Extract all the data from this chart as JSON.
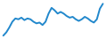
{
  "values": [
    1,
    5,
    11,
    18,
    22,
    21,
    23,
    20,
    22,
    21,
    18,
    16,
    17,
    14,
    18,
    28,
    35,
    32,
    28,
    30,
    28,
    25,
    23,
    24,
    21,
    19,
    21,
    24,
    22,
    19,
    17,
    21,
    34,
    40
  ],
  "line_color": "#2288cc",
  "background_color": "#ffffff",
  "linewidth": 1.4
}
